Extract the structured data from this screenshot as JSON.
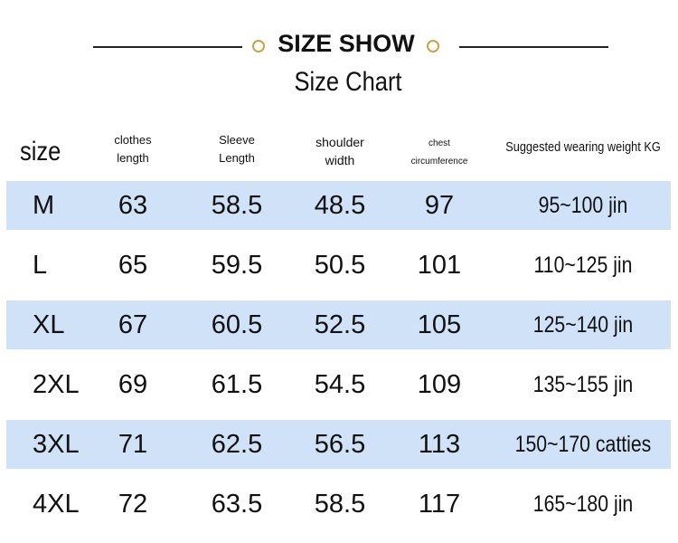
{
  "header": {
    "title": "SIZE SHOW",
    "subtitle": "Size Chart"
  },
  "table": {
    "columns": [
      "size",
      "clothes length",
      "Sleeve Length",
      "shoulder width",
      "chest circumference",
      "Suggested wearing weight KG"
    ],
    "rows": [
      [
        "M",
        "63",
        "58.5",
        "48.5",
        "97",
        "95~100 jin"
      ],
      [
        "L",
        "65",
        "59.5",
        "50.5",
        "101",
        "110~125 jin"
      ],
      [
        "XL",
        "67",
        "60.5",
        "52.5",
        "105",
        "125~140 jin"
      ],
      [
        "2XL",
        "69",
        "61.5",
        "54.5",
        "109",
        "135~155 jin"
      ],
      [
        "3XL",
        "71",
        "62.5",
        "56.5",
        "113",
        "150~170 catties"
      ],
      [
        "4XL",
        "72",
        "63.5",
        "58.5",
        "117",
        "165~180 jin"
      ]
    ]
  }
}
